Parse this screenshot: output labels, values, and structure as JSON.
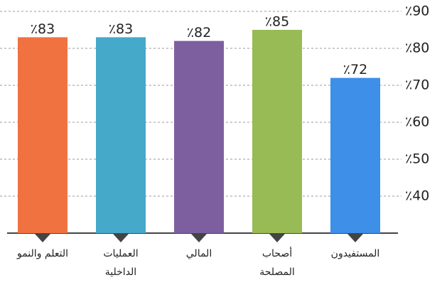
{
  "chart_data": {
    "type": "bar",
    "categories": [
      "المستفيدون",
      "أصحاب المصلحة",
      "المالي",
      "العمليات الداخلية",
      "التعلم والنمو"
    ],
    "values": [
      72,
      85,
      82,
      83,
      83
    ],
    "value_labels": [
      "٪72",
      "٪85",
      "٪82",
      "٪83",
      "٪83"
    ],
    "colors": [
      "#3d8fe8",
      "#99bb55",
      "#7d5fa0",
      "#45a9c9",
      "#f07241"
    ],
    "ylim": [
      30,
      90
    ],
    "yticks": [
      {
        "value": 40,
        "label": "٪40"
      },
      {
        "value": 50,
        "label": "٪50"
      },
      {
        "value": 60,
        "label": "٪60"
      },
      {
        "value": 70,
        "label": "٪70"
      },
      {
        "value": 80,
        "label": "٪80"
      },
      {
        "value": 90,
        "label": "٪90"
      }
    ],
    "grid": true
  }
}
